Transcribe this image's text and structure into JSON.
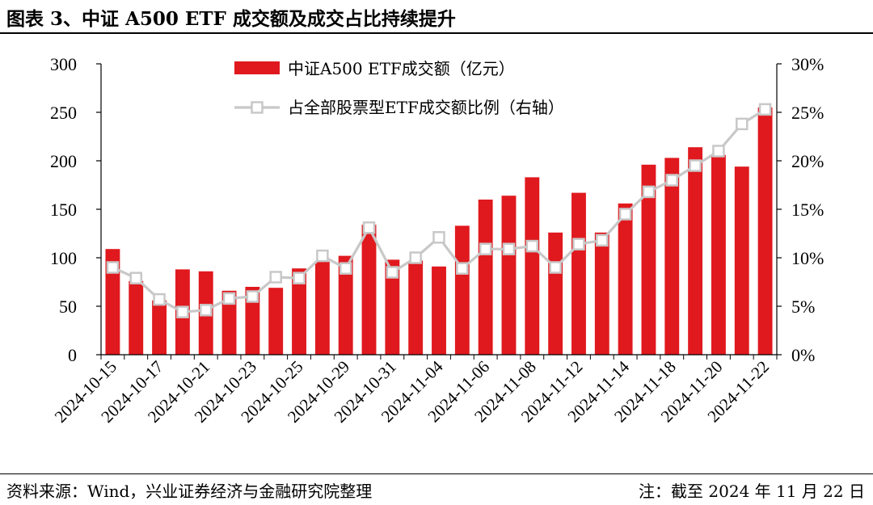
{
  "title": "图表 3、中证 A500 ETF 成交额及成交占比持续提升",
  "footer": {
    "source": "资料来源：Wind，兴业证券经济与金融研究院整理",
    "note": "注：截至 2024 年 11 月 22 日"
  },
  "colors": {
    "bar": "#e0191e",
    "line": "#c8c8c8",
    "marker_fill": "#ffffff",
    "axis": "#000000"
  },
  "chart_data": {
    "type": "bar",
    "title": "",
    "categories": [
      "2024-10-15",
      "2024-10-16",
      "2024-10-17",
      "2024-10-18",
      "2024-10-21",
      "2024-10-22",
      "2024-10-23",
      "2024-10-24",
      "2024-10-25",
      "2024-10-28",
      "2024-10-29",
      "2024-10-30",
      "2024-10-31",
      "2024-11-01",
      "2024-11-04",
      "2024-11-05",
      "2024-11-06",
      "2024-11-07",
      "2024-11-08",
      "2024-11-11",
      "2024-11-12",
      "2024-11-13",
      "2024-11-14",
      "2024-11-15",
      "2024-11-18",
      "2024-11-19",
      "2024-11-20",
      "2024-11-21",
      "2024-11-22"
    ],
    "x_tick_labels": [
      "2024-10-15",
      "2024-10-17",
      "2024-10-21",
      "2024-10-23",
      "2024-10-25",
      "2024-10-29",
      "2024-10-31",
      "2024-11-04",
      "2024-11-06",
      "2024-11-08",
      "2024-11-12",
      "2024-11-14",
      "2024-11-18",
      "2024-11-20",
      "2024-11-22"
    ],
    "series": [
      {
        "name": "中证A500 ETF成交额（亿元）",
        "type": "bar",
        "axis": "left",
        "values": [
          109,
          76,
          56,
          88,
          86,
          66,
          70,
          69,
          89,
          96,
          102,
          134,
          98,
          97,
          91,
          133,
          160,
          164,
          183,
          126,
          167,
          126,
          156,
          196,
          203,
          214,
          206,
          194,
          255
        ]
      },
      {
        "name": "占全部股票型ETF成交额比例（右轴）",
        "type": "line",
        "axis": "right",
        "values": [
          9.0,
          7.9,
          5.7,
          4.4,
          4.6,
          5.8,
          6.0,
          8.0,
          7.9,
          10.2,
          8.9,
          13.1,
          8.5,
          10.0,
          12.1,
          8.9,
          10.9,
          10.9,
          11.2,
          9.0,
          11.4,
          11.8,
          14.5,
          16.8,
          18.0,
          19.5,
          21.0,
          23.8,
          25.3
        ]
      }
    ],
    "y_left": {
      "ylim": [
        0,
        300
      ],
      "ticks": [
        "0",
        "50",
        "100",
        "150",
        "200",
        "250",
        "300"
      ]
    },
    "y_right": {
      "ylim": [
        0,
        30
      ],
      "ticks": [
        "0%",
        "5%",
        "10%",
        "15%",
        "20%",
        "25%",
        "30%"
      ]
    },
    "legend_position": "top-center",
    "grid": false
  }
}
